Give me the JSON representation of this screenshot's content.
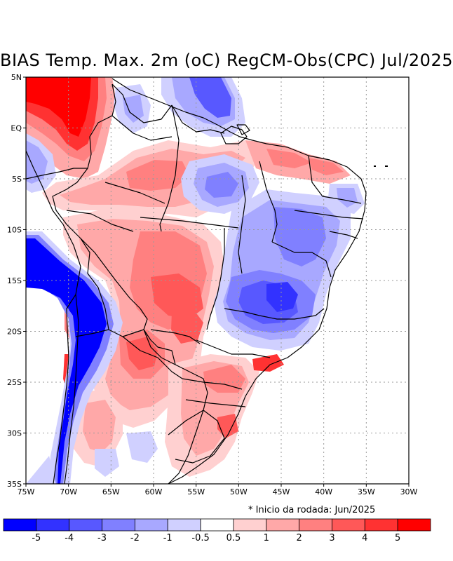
{
  "title": "BIAS Temp. Max. 2m (oC) RegCM-Obs(CPC) Jul/2025",
  "footnote": "* Inicio da rodada: Jun/2025",
  "axes": {
    "lat_labels": [
      "5N",
      "EQ",
      "5S",
      "10S",
      "15S",
      "20S",
      "25S",
      "30S",
      "35S"
    ],
    "lon_labels": [
      "75W",
      "70W",
      "65W",
      "60W",
      "55W",
      "50W",
      "45W",
      "40W",
      "35W",
      "30W"
    ]
  },
  "colorbar": {
    "labels": [
      "-5",
      "-4",
      "-3",
      "-2",
      "-1",
      "-0.5",
      "0.5",
      "1",
      "2",
      "3",
      "4",
      "5"
    ],
    "colors": [
      "#0000ff",
      "#3232ff",
      "#5858ff",
      "#8080ff",
      "#a8a8ff",
      "#d0d0ff",
      "#ffffff",
      "#ffd0d0",
      "#ffa8a8",
      "#ff8080",
      "#ff5858",
      "#ff3232",
      "#ff0000"
    ]
  }
}
